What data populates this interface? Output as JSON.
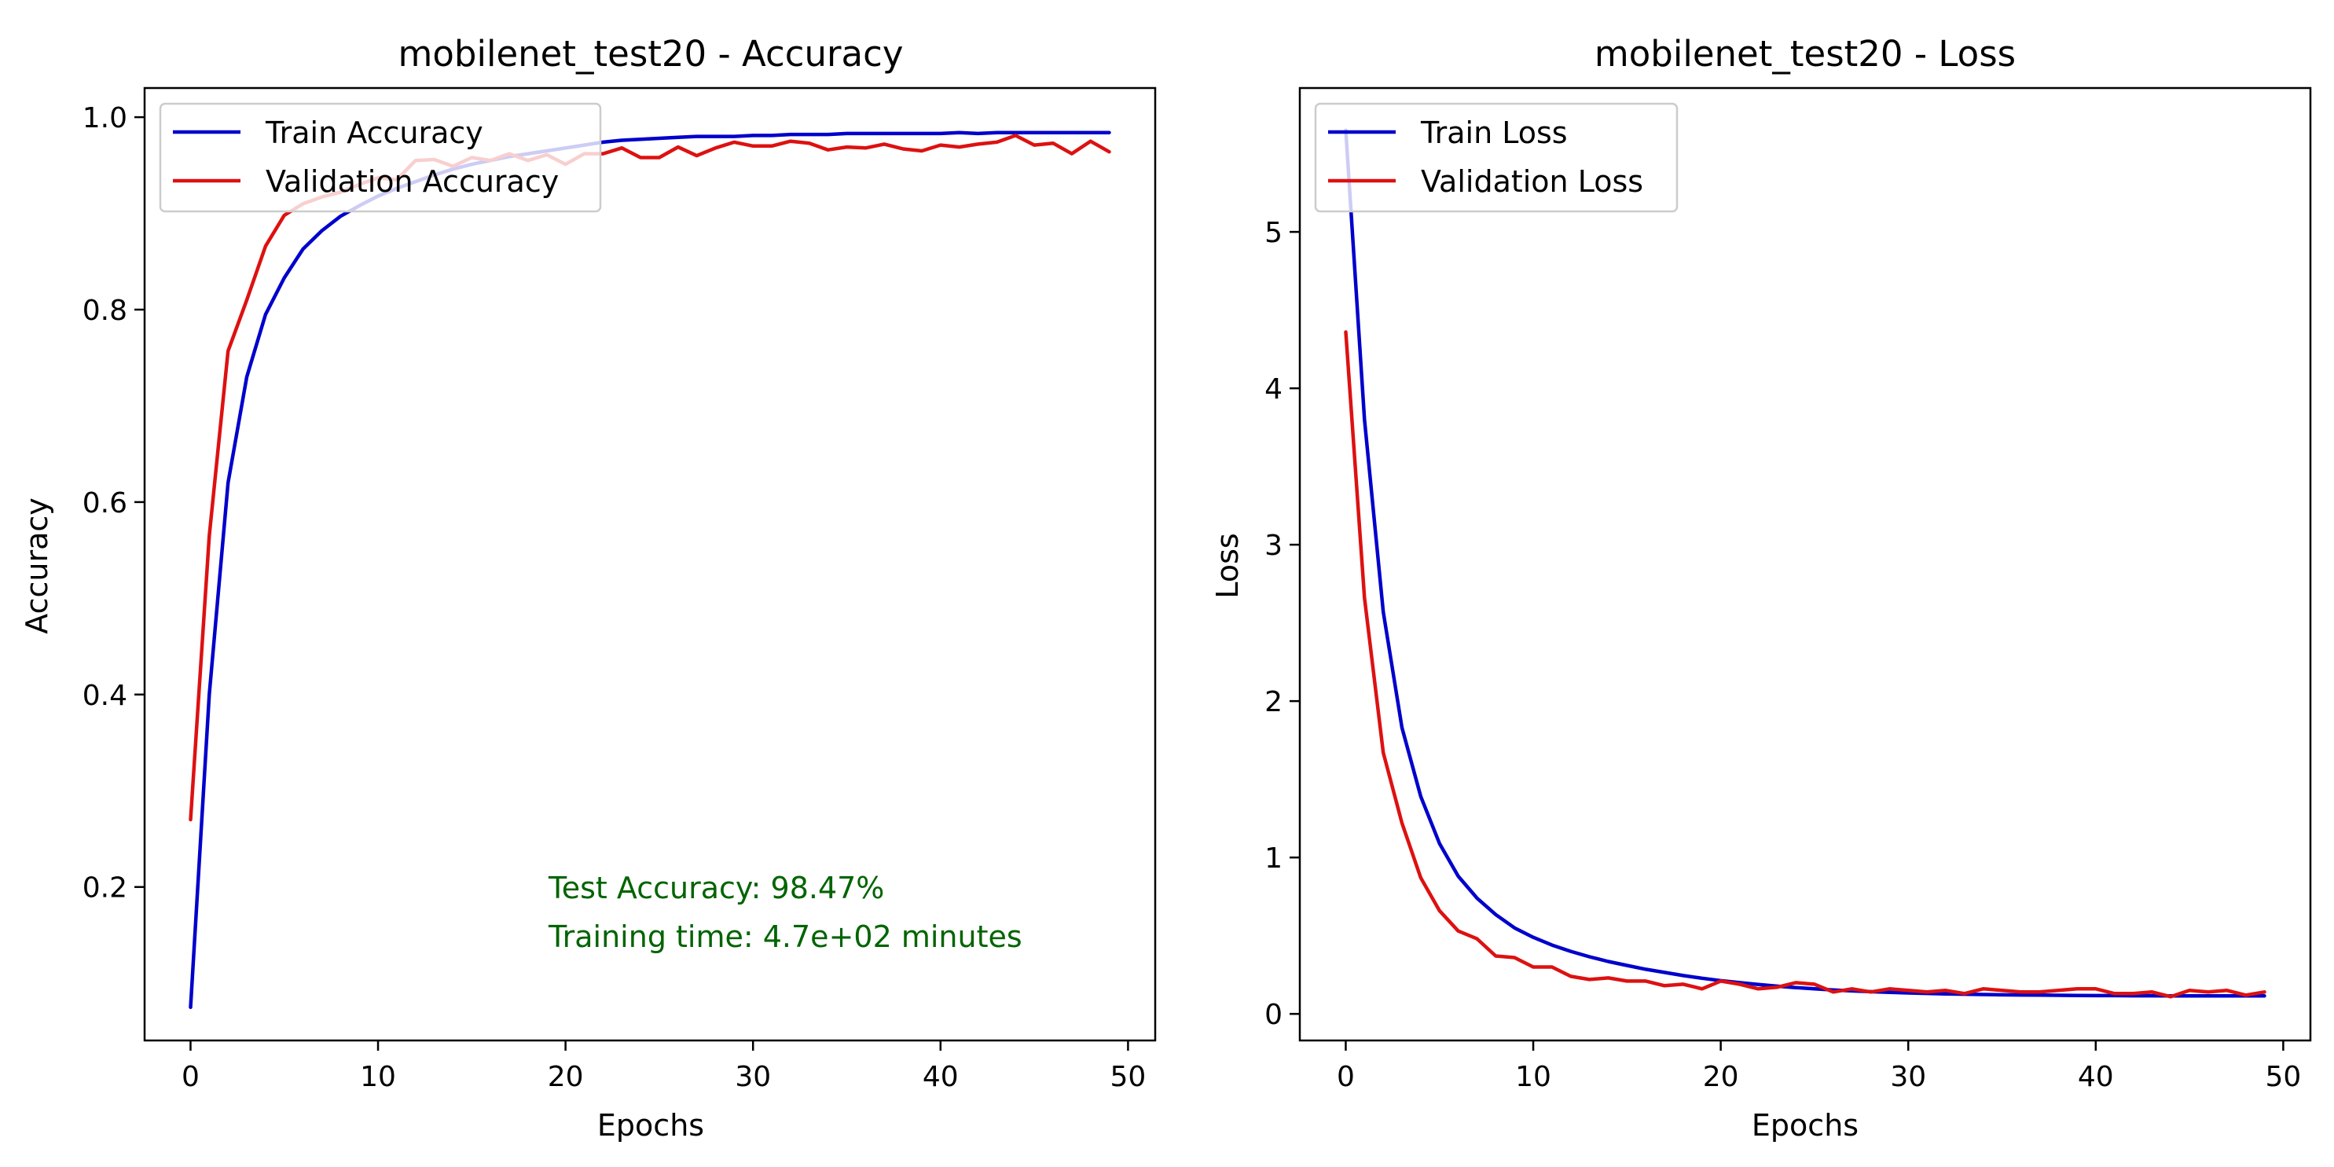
{
  "chart_data": [
    {
      "type": "line",
      "title": "mobilenet_test20 - Accuracy",
      "xlabel": "Epochs",
      "ylabel": "Accuracy",
      "xlim": [
        -2.45,
        51.45
      ],
      "ylim": [
        0.0405,
        1.0303
      ],
      "xticks": [
        0,
        10,
        20,
        30,
        40,
        50
      ],
      "yticks": [
        0.2,
        0.4,
        0.6,
        0.8,
        1.0
      ],
      "ytick_labels": [
        "0.2",
        "0.4",
        "0.6",
        "0.8",
        "1.0"
      ],
      "legend": "upper-left",
      "annotations": [
        "Test Accuracy: 98.47%",
        "Training time: 4.7e+02 minutes"
      ],
      "annotation_color": "#006400",
      "x": [
        0,
        1,
        2,
        3,
        4,
        5,
        6,
        7,
        8,
        9,
        10,
        11,
        12,
        13,
        14,
        15,
        16,
        17,
        18,
        19,
        20,
        21,
        22,
        23,
        24,
        25,
        26,
        27,
        28,
        29,
        30,
        31,
        32,
        33,
        34,
        35,
        36,
        37,
        38,
        39,
        40,
        41,
        42,
        43,
        44,
        45,
        46,
        47,
        48,
        49
      ],
      "series": [
        {
          "name": "Train Accuracy",
          "color": "#0000cc",
          "values": [
            0.075,
            0.4,
            0.62,
            0.73,
            0.795,
            0.833,
            0.863,
            0.882,
            0.897,
            0.908,
            0.918,
            0.926,
            0.933,
            0.94,
            0.946,
            0.951,
            0.955,
            0.959,
            0.962,
            0.965,
            0.968,
            0.971,
            0.974,
            0.976,
            0.977,
            0.978,
            0.979,
            0.98,
            0.98,
            0.98,
            0.981,
            0.981,
            0.982,
            0.982,
            0.982,
            0.983,
            0.983,
            0.983,
            0.983,
            0.983,
            0.983,
            0.984,
            0.983,
            0.984,
            0.984,
            0.984,
            0.984,
            0.984,
            0.984,
            0.984
          ]
        },
        {
          "name": "Validation Accuracy",
          "color": "#dd1111",
          "values": [
            0.27,
            0.565,
            0.757,
            0.81,
            0.866,
            0.898,
            0.91,
            0.917,
            0.922,
            0.93,
            0.937,
            0.935,
            0.955,
            0.956,
            0.949,
            0.958,
            0.955,
            0.962,
            0.955,
            0.961,
            0.951,
            0.962,
            0.962,
            0.968,
            0.958,
            0.958,
            0.969,
            0.96,
            0.968,
            0.974,
            0.97,
            0.97,
            0.975,
            0.973,
            0.966,
            0.969,
            0.968,
            0.972,
            0.967,
            0.965,
            0.971,
            0.969,
            0.972,
            0.974,
            0.981,
            0.971,
            0.973,
            0.962,
            0.975,
            0.964
          ]
        }
      ]
    },
    {
      "type": "line",
      "title": "mobilenet_test20 - Loss",
      "xlabel": "Epochs",
      "ylabel": "Loss",
      "xlim": [
        -2.45,
        51.45
      ],
      "ylim": [
        -0.17,
        5.92
      ],
      "xticks": [
        0,
        10,
        20,
        30,
        40,
        50
      ],
      "yticks": [
        0,
        1,
        2,
        3,
        4,
        5
      ],
      "ytick_labels": [
        "0",
        "1",
        "2",
        "3",
        "4",
        "5"
      ],
      "legend": "upper-left",
      "x": [
        0,
        1,
        2,
        3,
        4,
        5,
        6,
        7,
        8,
        9,
        10,
        11,
        12,
        13,
        14,
        15,
        16,
        17,
        18,
        19,
        20,
        21,
        22,
        23,
        24,
        25,
        26,
        27,
        28,
        29,
        30,
        31,
        32,
        33,
        34,
        35,
        36,
        37,
        38,
        39,
        40,
        41,
        42,
        43,
        44,
        45,
        46,
        47,
        48,
        49
      ],
      "series": [
        {
          "name": "Train Loss",
          "color": "#0000cc",
          "values": [
            5.65,
            3.8,
            2.57,
            1.83,
            1.39,
            1.09,
            0.88,
            0.74,
            0.635,
            0.55,
            0.49,
            0.44,
            0.4,
            0.365,
            0.335,
            0.31,
            0.285,
            0.265,
            0.245,
            0.228,
            0.213,
            0.2,
            0.188,
            0.177,
            0.168,
            0.16,
            0.153,
            0.147,
            0.142,
            0.138,
            0.134,
            0.131,
            0.128,
            0.126,
            0.124,
            0.122,
            0.121,
            0.12,
            0.119,
            0.118,
            0.117,
            0.117,
            0.116,
            0.116,
            0.115,
            0.115,
            0.115,
            0.115,
            0.115,
            0.115
          ]
        },
        {
          "name": "Validation Loss",
          "color": "#dd1111",
          "values": [
            4.36,
            2.66,
            1.67,
            1.22,
            0.87,
            0.66,
            0.53,
            0.48,
            0.37,
            0.36,
            0.3,
            0.3,
            0.24,
            0.22,
            0.23,
            0.21,
            0.21,
            0.18,
            0.19,
            0.16,
            0.21,
            0.19,
            0.16,
            0.17,
            0.2,
            0.19,
            0.14,
            0.16,
            0.14,
            0.16,
            0.15,
            0.14,
            0.15,
            0.13,
            0.16,
            0.15,
            0.14,
            0.14,
            0.15,
            0.16,
            0.16,
            0.13,
            0.13,
            0.14,
            0.11,
            0.15,
            0.14,
            0.15,
            0.12,
            0.14
          ]
        }
      ]
    }
  ]
}
